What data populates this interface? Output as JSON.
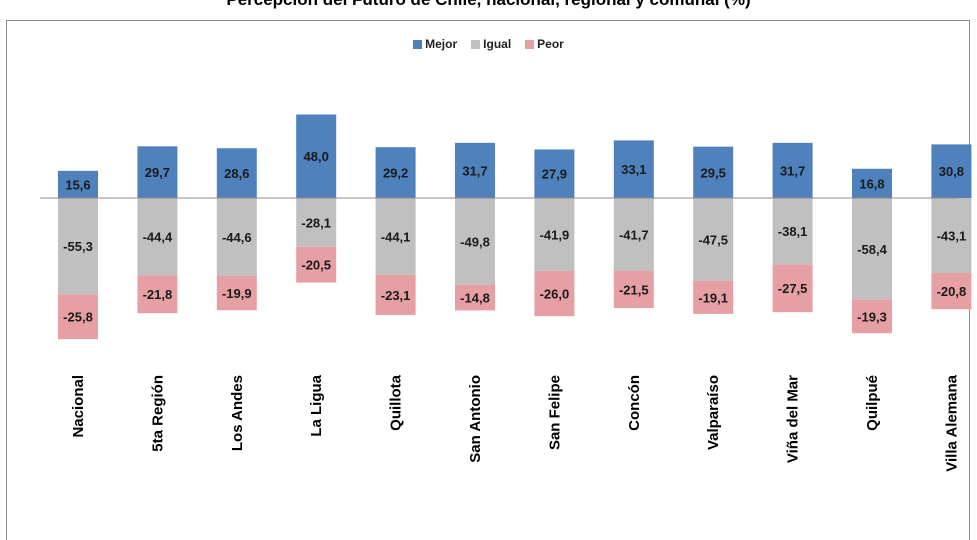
{
  "chart_data": {
    "type": "bar",
    "stacked": true,
    "title": "Percepción del Futuro de Chile, nacional, regional y comunal (%)",
    "legend_position": "top",
    "categories": [
      "Nacional",
      "5ta Región",
      "Los Andes",
      "La Ligua",
      "Quillota",
      "San Antonio",
      "San Felipe",
      "Concón",
      "Valparaíso",
      "Viña del Mar",
      "Quilpué",
      "Villa Alemana"
    ],
    "series": [
      {
        "name": "Mejor",
        "color": "#4f81bd",
        "values": [
          15.6,
          29.7,
          28.6,
          48.0,
          29.2,
          31.7,
          27.9,
          33.1,
          29.5,
          31.7,
          16.8,
          30.8
        ]
      },
      {
        "name": "Igual",
        "color": "#c0c0c0",
        "values": [
          -55.3,
          -44.4,
          -44.6,
          -28.1,
          -44.1,
          -49.8,
          -41.9,
          -41.7,
          -47.5,
          -38.1,
          -58.4,
          -43.1
        ]
      },
      {
        "name": "Peor",
        "color": "#e6a0a3",
        "values": [
          -25.8,
          -21.8,
          -19.9,
          -20.5,
          -23.1,
          -14.8,
          -26.0,
          -21.5,
          -19.1,
          -27.5,
          -19.3,
          -20.8
        ]
      }
    ],
    "labels": {
      "Mejor": [
        "15,6",
        "29,7",
        "28,6",
        "48,0",
        "29,2",
        "31,7",
        "27,9",
        "33,1",
        "29,5",
        "31,7",
        "16,8",
        "30,8"
      ],
      "Igual": [
        "-55,3",
        "-44,4",
        "-44,6",
        "-28,1",
        "-44,1",
        "-49,8",
        "-41,9",
        "-41,7",
        "-47,5",
        "-38,1",
        "-58,4",
        "-43,1"
      ],
      "Peor": [
        "-25,8",
        "-21,8",
        "-19,9",
        "-20,5",
        "-23,1",
        "-14,8",
        "-26,0",
        "-21,5",
        "-19,1",
        "-27,5",
        "-19,3",
        "-20,8"
      ]
    }
  }
}
